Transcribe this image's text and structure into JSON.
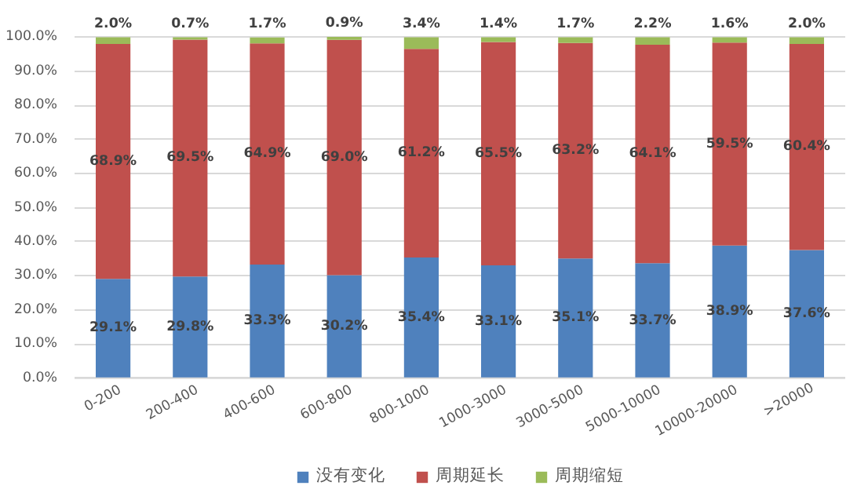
{
  "chart_data": {
    "type": "bar",
    "stacked": true,
    "categories": [
      "0-200",
      "200-400",
      "400-600",
      "600-800",
      "800-1000",
      "1000-3000",
      "3000-5000",
      "5000-10000",
      "10000-20000",
      ">20000"
    ],
    "series": [
      {
        "name": "没有变化",
        "color": "#4f81bd",
        "values": [
          29.1,
          29.8,
          33.3,
          30.2,
          35.4,
          33.1,
          35.1,
          33.7,
          38.9,
          37.6
        ],
        "value_labels": [
          "29.1%",
          "29.8%",
          "33.3%",
          "30.2%",
          "35.4%",
          "33.1%",
          "35.1%",
          "33.7%",
          "38.9%",
          "37.6%"
        ]
      },
      {
        "name": "周期延长",
        "color": "#c0504d",
        "values": [
          68.9,
          69.5,
          64.9,
          69.0,
          61.2,
          65.5,
          63.2,
          64.1,
          59.5,
          60.4
        ],
        "value_labels": [
          "68.9%",
          "69.5%",
          "64.9%",
          "69.0%",
          "61.2%",
          "65.5%",
          "63.2%",
          "64.1%",
          "59.5%",
          "60.4%"
        ]
      },
      {
        "name": "周期缩短",
        "color": "#9bbb59",
        "values": [
          2.0,
          0.7,
          1.7,
          0.9,
          3.4,
          1.4,
          1.7,
          2.2,
          1.6,
          2.0
        ],
        "value_labels": [
          "2.0%",
          "0.7%",
          "1.7%",
          "0.9%",
          "3.4%",
          "1.4%",
          "1.7%",
          "2.2%",
          "1.6%",
          "2.0%"
        ]
      }
    ],
    "ylim": [
      0,
      100
    ],
    "yticks": [
      {
        "value": 0,
        "label": "0.0%"
      },
      {
        "value": 10,
        "label": "10.0%"
      },
      {
        "value": 20,
        "label": "20.0%"
      },
      {
        "value": 30,
        "label": "30.0%"
      },
      {
        "value": 40,
        "label": "40.0%"
      },
      {
        "value": 50,
        "label": "50.0%"
      },
      {
        "value": 60,
        "label": "60.0%"
      },
      {
        "value": 70,
        "label": "70.0%"
      },
      {
        "value": 80,
        "label": "80.0%"
      },
      {
        "value": 90,
        "label": "90.0%"
      },
      {
        "value": 100,
        "label": "100.0%"
      }
    ],
    "grid": "y",
    "legend": "bottom"
  }
}
